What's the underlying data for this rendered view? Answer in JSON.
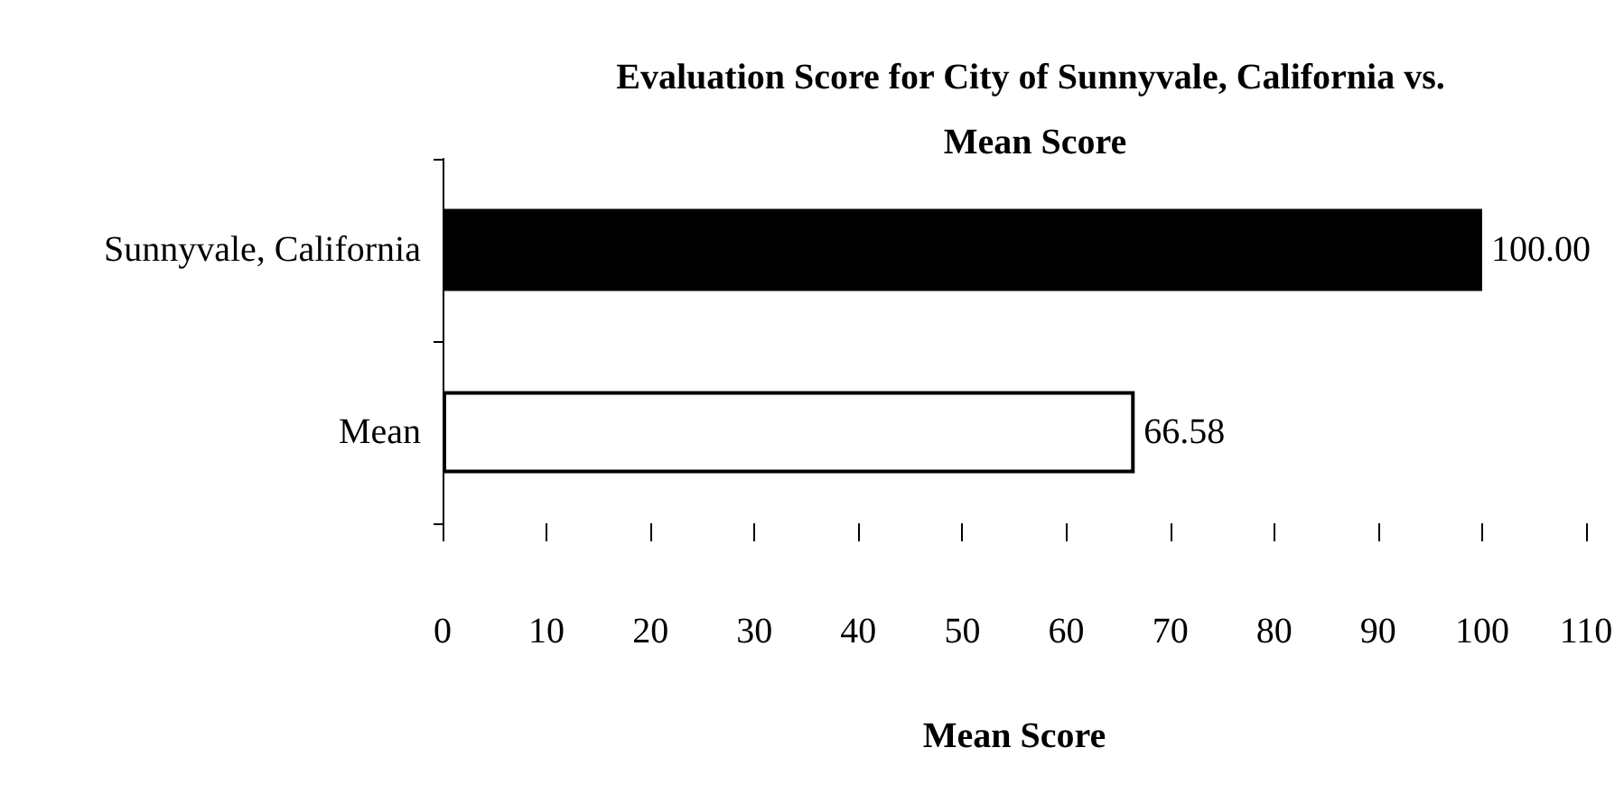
{
  "chart_data": {
    "type": "bar",
    "orientation": "horizontal",
    "title": "Evaluation Score for City of Sunnyvale, California vs. Mean Score",
    "xlabel": "Mean Score",
    "categories": [
      "Sunnyvale, California",
      "Mean"
    ],
    "values": [
      100,
      66.58
    ],
    "colors": [
      "#000000",
      "#ffffff"
    ],
    "value_labels": [
      "100.00",
      "66.58"
    ],
    "xlim": [
      0,
      110
    ],
    "xticks": [
      0,
      10,
      20,
      30,
      40,
      50,
      60,
      70,
      80,
      90,
      100,
      110
    ],
    "grid": false
  }
}
